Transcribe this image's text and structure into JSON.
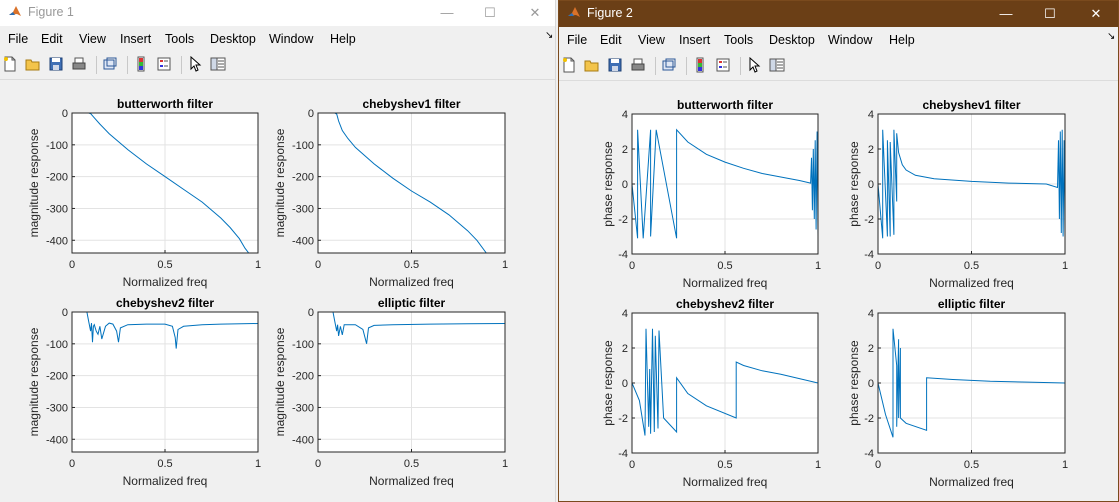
{
  "windows": [
    {
      "title": "Figure 1",
      "menu": [
        "File",
        "Edit",
        "View",
        "Insert",
        "Tools",
        "Desktop",
        "Window",
        "Help"
      ],
      "controls": {
        "minimize": "—",
        "maximize": "☐",
        "close": "✕"
      },
      "toolbar_icons": [
        "new-figure-icon",
        "open-file-icon",
        "save-icon",
        "print-icon",
        "link-icon",
        "insert-colorbar-icon",
        "insert-legend-icon",
        "edit-plot-icon",
        "property-inspector-icon"
      ]
    },
    {
      "title": "Figure 2",
      "menu": [
        "File",
        "Edit",
        "View",
        "Insert",
        "Tools",
        "Desktop",
        "Window",
        "Help"
      ],
      "controls": {
        "minimize": "—",
        "maximize": "☐",
        "close": "✕"
      },
      "toolbar_icons": [
        "new-figure-icon",
        "open-file-icon",
        "save-icon",
        "print-icon",
        "link-icon",
        "insert-colorbar-icon",
        "insert-legend-icon",
        "edit-plot-icon",
        "property-inspector-icon"
      ]
    }
  ],
  "colors": {
    "line": "#0072bd",
    "grid": "#e3e3e3",
    "axis": "#262626",
    "title_bar_active": "#6b3f16"
  },
  "chart_data": [
    {
      "figure": "Figure 1",
      "type": "line",
      "title": "butterworth filter",
      "xlabel": "Normalized freq",
      "ylabel": "magnitude response",
      "xlim": [
        0,
        1
      ],
      "ylim": [
        -440,
        0
      ],
      "xticks": [
        "0",
        "0.5",
        "1"
      ],
      "yticks": [
        "0",
        "-100",
        "-200",
        "-300",
        "-400"
      ],
      "grid": true,
      "series": [
        {
          "x": [
            0,
            0.09,
            0.1,
            0.12,
            0.15,
            0.2,
            0.3,
            0.4,
            0.5,
            0.6,
            0.7,
            0.8,
            0.85,
            0.9,
            0.93,
            0.95
          ],
          "y": [
            0,
            0,
            -2,
            -15,
            -35,
            -65,
            -115,
            -160,
            -200,
            -240,
            -280,
            -330,
            -360,
            -395,
            -425,
            -440
          ]
        }
      ]
    },
    {
      "figure": "Figure 1",
      "type": "line",
      "title": "chebyshev1 filter",
      "xlabel": "Normalized freq",
      "ylabel": "magnitude response",
      "xlim": [
        0,
        1
      ],
      "ylim": [
        -440,
        0
      ],
      "xticks": [
        "0",
        "0.5",
        "1"
      ],
      "yticks": [
        "0",
        "-100",
        "-200",
        "-300",
        "-400"
      ],
      "grid": true,
      "series": [
        {
          "x": [
            0,
            0.09,
            0.1,
            0.11,
            0.13,
            0.16,
            0.2,
            0.3,
            0.4,
            0.5,
            0.6,
            0.7,
            0.8,
            0.85,
            0.9
          ],
          "y": [
            0,
            0,
            -3,
            -25,
            -55,
            -80,
            -108,
            -160,
            -205,
            -245,
            -280,
            -320,
            -370,
            -400,
            -440
          ]
        }
      ]
    },
    {
      "figure": "Figure 1",
      "type": "line",
      "title": "chebyshev2 filter",
      "xlabel": "Normalized freq",
      "ylabel": "magnitude response",
      "xlim": [
        0,
        1
      ],
      "ylim": [
        -440,
        0
      ],
      "xticks": [
        "0",
        "0.5",
        "1"
      ],
      "yticks": [
        "0",
        "-100",
        "-200",
        "-300",
        "-400"
      ],
      "grid": true,
      "series": [
        {
          "x": [
            0,
            0.08,
            0.09,
            0.1,
            0.105,
            0.11,
            0.115,
            0.12,
            0.13,
            0.14,
            0.15,
            0.16,
            0.18,
            0.2,
            0.22,
            0.24,
            0.25,
            0.26,
            0.3,
            0.4,
            0.5,
            0.54,
            0.555,
            0.56,
            0.57,
            0.6,
            0.7,
            0.8,
            1.0
          ],
          "y": [
            0,
            0,
            -30,
            -60,
            -35,
            -95,
            -45,
            -40,
            -60,
            -70,
            -45,
            -85,
            -45,
            -35,
            -38,
            -60,
            -95,
            -50,
            -40,
            -38,
            -38,
            -45,
            -80,
            -115,
            -55,
            -45,
            -40,
            -38,
            -36
          ]
        }
      ]
    },
    {
      "figure": "Figure 1",
      "type": "line",
      "title": "elliptic filter",
      "xlabel": "Normalized freq",
      "ylabel": "magnitude response",
      "xlim": [
        0,
        1
      ],
      "ylim": [
        -440,
        0
      ],
      "xticks": [
        "0",
        "0.5",
        "1"
      ],
      "yticks": [
        "0",
        "-100",
        "-200",
        "-300",
        "-400"
      ],
      "grid": true,
      "series": [
        {
          "x": [
            0,
            0.08,
            0.09,
            0.1,
            0.105,
            0.11,
            0.12,
            0.13,
            0.14,
            0.15,
            0.2,
            0.24,
            0.26,
            0.27,
            0.3,
            0.4,
            0.6,
            0.8,
            1.0
          ],
          "y": [
            0,
            0,
            -30,
            -60,
            -40,
            -75,
            -45,
            -72,
            -40,
            -40,
            -40,
            -55,
            -100,
            -50,
            -42,
            -40,
            -38,
            -37,
            -36
          ]
        }
      ]
    },
    {
      "figure": "Figure 2",
      "type": "line",
      "title": "butterworth filter",
      "xlabel": "Normalized freq",
      "ylabel": "phase response",
      "xlim": [
        0,
        1
      ],
      "ylim": [
        -4,
        4
      ],
      "xticks": [
        "0",
        "0.5",
        "1"
      ],
      "yticks": [
        "4",
        "2",
        "0",
        "-2",
        "-4"
      ],
      "grid": true,
      "series": [
        {
          "x": [
            0,
            0.03,
            0.03,
            0.06,
            0.1,
            0.1,
            0.13,
            0.24,
            0.24,
            0.3,
            0.4,
            0.5,
            0.6,
            0.7,
            0.8,
            0.9,
            0.96,
            0.965,
            0.97,
            0.975,
            0.98,
            0.985,
            0.99,
            0.995,
            1.0
          ],
          "y": [
            0,
            -3.1,
            3.1,
            -3.1,
            3.1,
            -3.0,
            3.1,
            -3.1,
            3.1,
            2.4,
            1.7,
            1.25,
            0.9,
            0.6,
            0.4,
            0.2,
            0.05,
            1.5,
            -1.5,
            2.0,
            -2.0,
            2.5,
            -2.6,
            3.0,
            -3.0
          ]
        }
      ]
    },
    {
      "figure": "Figure 2",
      "type": "line",
      "title": "chebyshev1 filter",
      "xlabel": "Normalized freq",
      "ylabel": "phase response",
      "xlim": [
        0,
        1
      ],
      "ylim": [
        -4,
        4
      ],
      "xticks": [
        "0",
        "0.5",
        "1"
      ],
      "yticks": [
        "4",
        "2",
        "0",
        "-2",
        "-4"
      ],
      "grid": true,
      "series": [
        {
          "x": [
            0,
            0.025,
            0.025,
            0.05,
            0.05,
            0.065,
            0.065,
            0.085,
            0.085,
            0.1,
            0.1,
            0.11,
            0.13,
            0.15,
            0.2,
            0.3,
            0.5,
            0.7,
            0.9,
            0.96,
            0.965,
            0.97,
            0.975,
            0.98,
            0.985,
            0.99,
            0.995,
            1.0
          ],
          "y": [
            0,
            -3.1,
            3.1,
            -3.0,
            2.5,
            -3.0,
            2.4,
            -2.9,
            3.1,
            -1.0,
            2.9,
            1.8,
            1.1,
            0.8,
            0.5,
            0.3,
            0.15,
            0.05,
            0.0,
            -0.2,
            2.5,
            -2.0,
            3.0,
            -2.8,
            3.1,
            -3.0,
            2.5,
            -3.0
          ]
        }
      ]
    },
    {
      "figure": "Figure 2",
      "type": "line",
      "title": "chebyshev2 filter",
      "xlabel": "Normalized freq",
      "ylabel": "phase response",
      "xlim": [
        0,
        1
      ],
      "ylim": [
        -4,
        4
      ],
      "xticks": [
        "0",
        "0.5",
        "1"
      ],
      "yticks": [
        "4",
        "2",
        "0",
        "-2",
        "-4"
      ],
      "grid": true,
      "series": [
        {
          "x": [
            0,
            0.04,
            0.07,
            0.075,
            0.09,
            0.095,
            0.1,
            0.11,
            0.12,
            0.125,
            0.14,
            0.145,
            0.17,
            0.24,
            0.24,
            0.3,
            0.4,
            0.56,
            0.56,
            0.6,
            0.7,
            0.8,
            0.9,
            1.0
          ],
          "y": [
            0,
            -1.0,
            -3.0,
            3.1,
            -2.5,
            0.8,
            -2.9,
            3.1,
            -2.8,
            2.7,
            -2.6,
            3.0,
            -2.0,
            -2.8,
            0.3,
            -0.6,
            -1.3,
            -2.0,
            1.2,
            1.0,
            0.7,
            0.5,
            0.25,
            0.0
          ]
        }
      ]
    },
    {
      "figure": "Figure 2",
      "type": "line",
      "title": "elliptic filter",
      "xlabel": "Normalized freq",
      "ylabel": "phase response",
      "xlim": [
        0,
        1
      ],
      "ylim": [
        -4,
        4
      ],
      "xticks": [
        "0",
        "0.5",
        "1"
      ],
      "yticks": [
        "4",
        "2",
        "0",
        "-2",
        "-4"
      ],
      "grid": true,
      "series": [
        {
          "x": [
            0,
            0.04,
            0.08,
            0.08,
            0.1,
            0.1,
            0.11,
            0.11,
            0.12,
            0.12,
            0.15,
            0.26,
            0.26,
            0.4,
            0.6,
            0.8,
            1.0
          ],
          "y": [
            0,
            -1.8,
            -3.1,
            3.1,
            1.0,
            -2.5,
            2.5,
            -2.0,
            2.0,
            -2.0,
            -2.3,
            -2.7,
            0.3,
            0.2,
            0.1,
            0.05,
            0.0
          ]
        }
      ]
    }
  ]
}
